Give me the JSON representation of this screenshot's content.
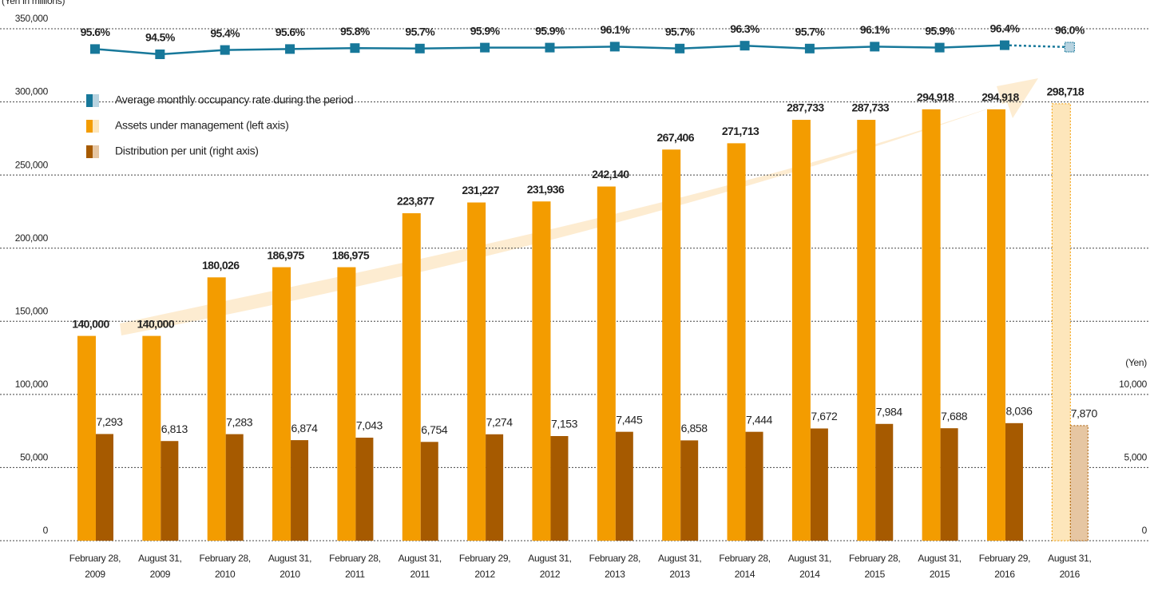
{
  "chart_data": {
    "type": "bar",
    "ylabel": "(Yen in millions)",
    "y2label": "(Yen)",
    "categories": [
      [
        "February 28,",
        "2009"
      ],
      [
        "August 31,",
        "2009"
      ],
      [
        "February 28,",
        "2010"
      ],
      [
        "August 31,",
        "2010"
      ],
      [
        "February 28,",
        "2011"
      ],
      [
        "August 31,",
        "2011"
      ],
      [
        "February 29,",
        "2012"
      ],
      [
        "August 31,",
        "2012"
      ],
      [
        "February 28,",
        "2013"
      ],
      [
        "August 31,",
        "2013"
      ],
      [
        "February 28,",
        "2014"
      ],
      [
        "August 31,",
        "2014"
      ],
      [
        "February 28,",
        "2015"
      ],
      [
        "August 31,",
        "2015"
      ],
      [
        "February 29,",
        "2016"
      ],
      [
        "August 31,",
        "2016"
      ]
    ],
    "ylim": [
      0,
      350000
    ],
    "yticks": [
      0,
      {
        "value": 50000,
        "label": "50,000"
      },
      {
        "value": 100000,
        "label": "100,000"
      },
      {
        "value": 150000,
        "label": "150,000"
      },
      {
        "value": 200000,
        "label": "200,000"
      },
      {
        "value": 250000,
        "label": "250,000"
      },
      {
        "value": 300000,
        "label": "300,000"
      },
      {
        "value": 350000,
        "label": "350,000"
      }
    ],
    "y2lim": [
      0,
      35000
    ],
    "y2ticks": [
      0,
      {
        "value": 5000,
        "label": "5,000"
      },
      {
        "value": 10000,
        "label": "10,000"
      }
    ],
    "y3lim": [
      90,
      100
    ],
    "grid": true,
    "legend": "top-left",
    "forecast_index": 15,
    "series": [
      {
        "name": "Average monthly occupancy rate during the period",
        "type": "line",
        "axis": "y3",
        "color": "#17789a",
        "forecast_color": "#b8d3e0",
        "values": [
          95.6,
          94.5,
          95.4,
          95.6,
          95.8,
          95.7,
          95.9,
          95.9,
          96.1,
          95.7,
          96.3,
          95.7,
          96.1,
          95.9,
          96.4,
          96.0
        ],
        "value_labels": [
          "95.6%",
          "94.5%",
          "95.4%",
          "95.6%",
          "95.8%",
          "95.7%",
          "95.9%",
          "95.9%",
          "96.1%",
          "95.7%",
          "96.3%",
          "95.7%",
          "96.1%",
          "95.9%",
          "96.4%",
          "96.0%"
        ]
      },
      {
        "name": "Assets under management (left axis)",
        "type": "bar",
        "axis": "y",
        "color": "#f39c00",
        "forecast_color": "#fde6bb",
        "values": [
          140000,
          140000,
          180026,
          186975,
          186975,
          223877,
          231227,
          231936,
          242140,
          267406,
          271713,
          287733,
          287733,
          294918,
          294918,
          298718
        ],
        "value_labels": [
          "140,000",
          "140,000",
          "180,026",
          "186,975",
          "186,975",
          "223,877",
          "231,227",
          "231,936",
          "242,140",
          "267,406",
          "271,713",
          "287,733",
          "287,733",
          "294,918",
          "294,918",
          "298,718"
        ]
      },
      {
        "name": "Distribution per unit (right axis)",
        "type": "bar",
        "axis": "y2",
        "color": "#a65a00",
        "forecast_color": "#e6c6a2",
        "values": [
          7293,
          6813,
          7283,
          6874,
          7043,
          6754,
          7274,
          7153,
          7445,
          6858,
          7444,
          7672,
          7984,
          7688,
          8036,
          7870
        ],
        "value_labels": [
          "7,293",
          "6,813",
          "7,283",
          "6,874",
          "7,043",
          "6,754",
          "7,274",
          "7,153",
          "7,445",
          "6,858",
          "7,444",
          "7,672",
          "7,984",
          "7,688",
          "8,036",
          "7,870"
        ]
      }
    ]
  }
}
